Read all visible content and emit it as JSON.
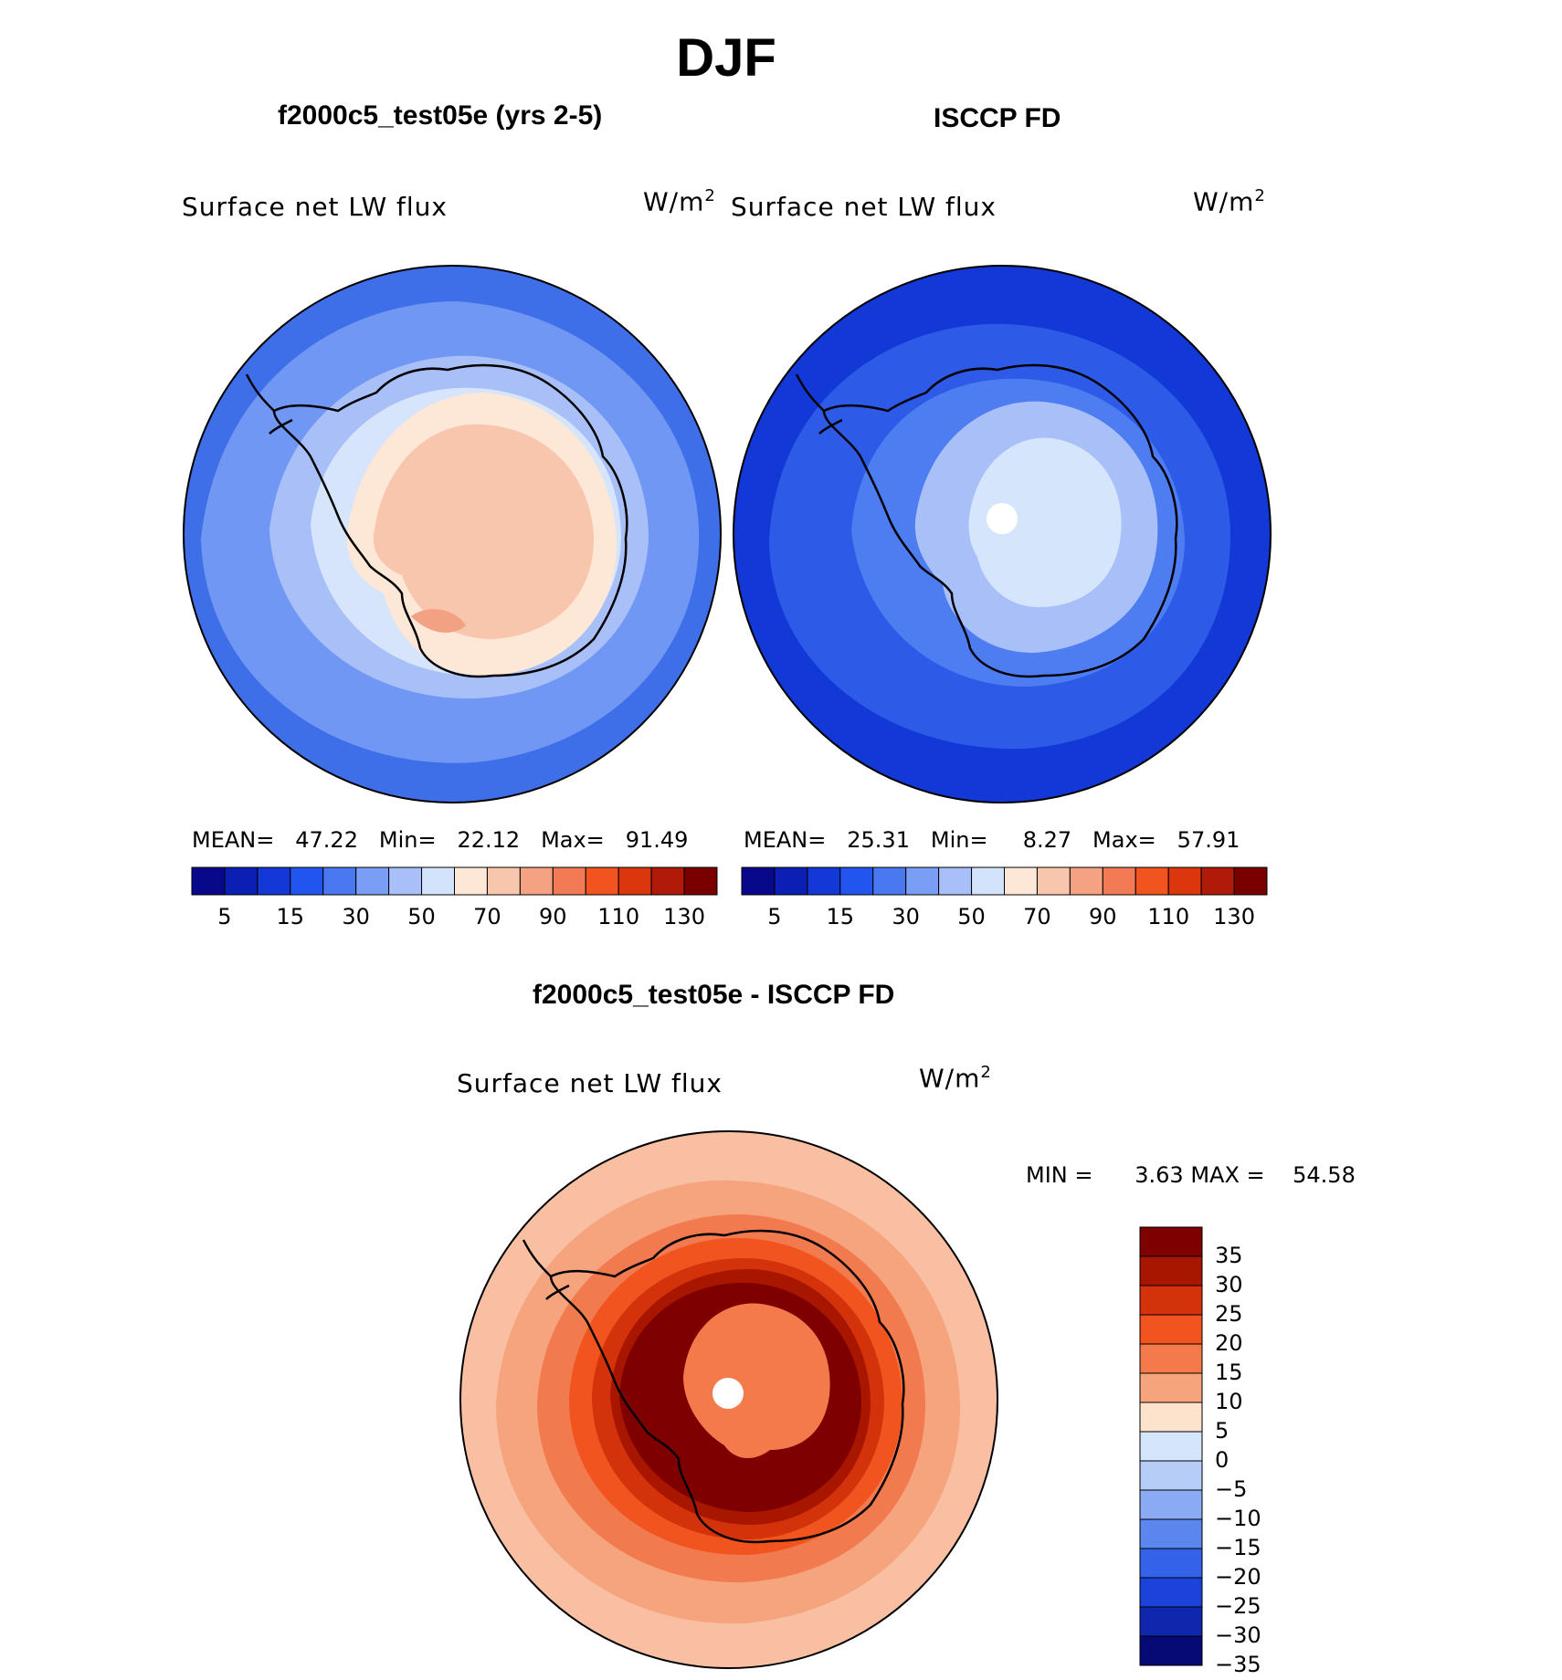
{
  "figure": {
    "title": "DJF"
  },
  "panels": {
    "model": {
      "title": "f2000c5_test05e (yrs 2-5)",
      "variable": "Surface net LW flux",
      "units": "W/m",
      "units_exp": "2",
      "mean_label": "MEAN=",
      "mean": "47.22",
      "min_label": "Min=",
      "min": "22.12",
      "max_label": "Max=",
      "max": "91.49"
    },
    "obs": {
      "title": "ISCCP FD",
      "variable": "Surface net LW flux",
      "units": "W/m",
      "units_exp": "2",
      "mean_label": "MEAN=",
      "mean": "25.31",
      "min_label": "Min=",
      "min": "8.27",
      "max_label": "Max=",
      "max": "57.91"
    },
    "diff": {
      "title": "f2000c5_test05e - ISCCP FD",
      "variable": "Surface net LW flux",
      "units": "W/m",
      "units_exp": "2",
      "minmax_text": "MIN =      3.63 MAX =    54.58"
    }
  },
  "colorbar_main": {
    "colors": [
      "#08088a",
      "#0b1fb4",
      "#1238d6",
      "#2255ee",
      "#4a78f0",
      "#7a9ef5",
      "#a8c0f7",
      "#d3e3fb",
      "#fde7d6",
      "#f8c6ad",
      "#f4a282",
      "#f27a54",
      "#f1541f",
      "#db360e",
      "#b01a08",
      "#7a0000"
    ],
    "ticks": [
      "5",
      "15",
      "30",
      "50",
      "70",
      "90",
      "110",
      "130"
    ]
  },
  "colorbar_diff": {
    "colors": [
      "#7f0000",
      "#a81600",
      "#d4320a",
      "#f1541f",
      "#f47a4b",
      "#f6a47d",
      "#fde2cc",
      "#d5e6fa",
      "#b5cdf7",
      "#8aabf3",
      "#5a86ee",
      "#3463ea",
      "#1b43dc",
      "#0e27ad",
      "#060a74"
    ],
    "ticks": [
      "35",
      "30",
      "25",
      "20",
      "15",
      "10",
      "5",
      "0",
      "−5",
      "−10",
      "−15",
      "−20",
      "−25",
      "−30",
      "−35"
    ]
  },
  "map_colors": {
    "model": {
      "ocean_outer": "#3f6fe8",
      "ocean_mid": "#6f97f3",
      "ocean_inner": "#a8c0f7",
      "ring": "#d6e5fb",
      "land": "#fde7d6",
      "land_inner": "#f8c6ad",
      "land_peak": "#f2a182"
    },
    "obs": {
      "ocean_outer": "#1238d6",
      "ocean_mid": "#2d5be8",
      "ocean_inner": "#4d7df0",
      "land": "#a8c0f7",
      "land_inner": "#d5e5fb",
      "hole": "#ffffff"
    },
    "diff": {
      "outer": "#f8bfa2",
      "mid": "#f6a47d",
      "ring1": "#f27a4f",
      "ring2": "#f1541f",
      "ring3": "#d4320a",
      "land": "#a81600",
      "land_core": "#7f0000",
      "center": "#f47a4b",
      "hole": "#ffffff"
    }
  }
}
